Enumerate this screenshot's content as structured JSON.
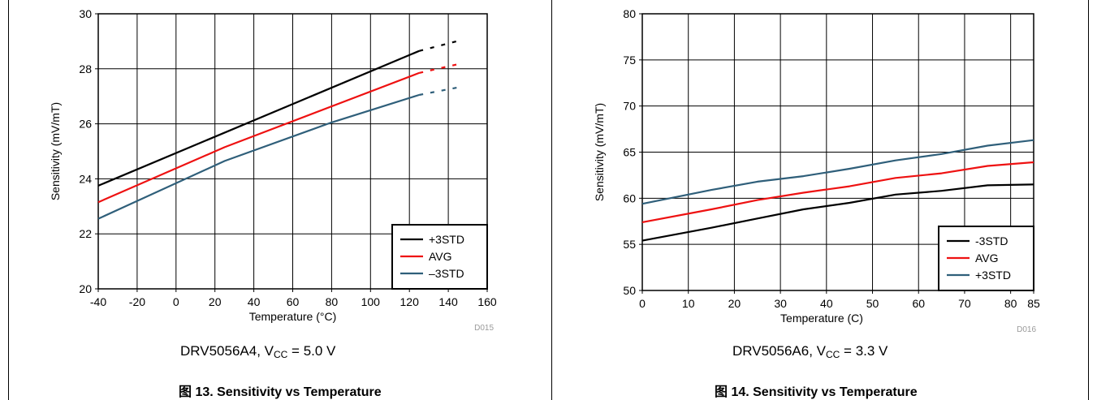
{
  "chart_data": [
    {
      "type": "line",
      "xlabel": "Temperature (°C)",
      "ylabel": "Sensitivity (mV/mT)",
      "xlim": [
        -40,
        160
      ],
      "ylim": [
        20,
        30
      ],
      "xticks": [
        -40,
        -20,
        0,
        20,
        40,
        60,
        80,
        100,
        120,
        140,
        160
      ],
      "yticks": [
        20,
        22,
        24,
        26,
        28,
        30
      ],
      "grid": true,
      "legend_position": "bottom-right",
      "code": "D015",
      "device": "DRV5056A4, V",
      "vcc_sub": "CC",
      "vcc_value": " = 5.0 V",
      "caption": "图 13. Sensitivity vs Temperature",
      "series": [
        {
          "name": "+3STD",
          "color": "#000000",
          "solid": [
            [
              -40,
              23.75
            ],
            [
              125,
              28.65
            ]
          ],
          "dashed": [
            [
              125,
              28.65
            ],
            [
              147,
              29.05
            ]
          ]
        },
        {
          "name": "AVG",
          "color": "#ee1111",
          "solid": [
            [
              -40,
              23.15
            ],
            [
              25,
              25.15
            ],
            [
              125,
              27.85
            ]
          ],
          "dashed": [
            [
              125,
              27.85
            ],
            [
              147,
              28.2
            ]
          ]
        },
        {
          "name": "–3STD",
          "color": "#2f5f7a",
          "solid": [
            [
              -40,
              22.55
            ],
            [
              25,
              24.65
            ],
            [
              80,
              26.05
            ],
            [
              125,
              27.05
            ]
          ],
          "dashed": [
            [
              125,
              27.05
            ],
            [
              147,
              27.35
            ]
          ]
        }
      ]
    },
    {
      "type": "line",
      "xlabel": "Temperature (C)",
      "ylabel": "Sensitivity (mV/mT)",
      "xlim": [
        0,
        85
      ],
      "ylim": [
        50,
        80
      ],
      "xticks": [
        0,
        10,
        20,
        30,
        40,
        50,
        60,
        70,
        80,
        85
      ],
      "yticks": [
        50,
        55,
        60,
        65,
        70,
        75,
        80
      ],
      "grid": true,
      "legend_position": "bottom-right",
      "code": "D016",
      "device": "DRV5056A6, V",
      "vcc_sub": "CC",
      "vcc_value": " = 3.3 V",
      "caption": "图 14. Sensitivity vs Temperature",
      "series": [
        {
          "name": "-3STD",
          "color": "#000000",
          "solid": [
            [
              0,
              55.4
            ],
            [
              15,
              56.8
            ],
            [
              25,
              57.8
            ],
            [
              35,
              58.8
            ],
            [
              45,
              59.5
            ],
            [
              55,
              60.4
            ],
            [
              65,
              60.8
            ],
            [
              75,
              61.4
            ],
            [
              85,
              61.5
            ]
          ],
          "dashed": []
        },
        {
          "name": "AVG",
          "color": "#ee1111",
          "solid": [
            [
              0,
              57.4
            ],
            [
              15,
              58.8
            ],
            [
              25,
              59.8
            ],
            [
              35,
              60.6
            ],
            [
              45,
              61.3
            ],
            [
              55,
              62.2
            ],
            [
              65,
              62.7
            ],
            [
              75,
              63.5
            ],
            [
              85,
              63.9
            ]
          ],
          "dashed": []
        },
        {
          "name": "+3STD",
          "color": "#2f5f7a",
          "solid": [
            [
              0,
              59.4
            ],
            [
              15,
              60.9
            ],
            [
              25,
              61.8
            ],
            [
              35,
              62.4
            ],
            [
              45,
              63.2
            ],
            [
              55,
              64.1
            ],
            [
              65,
              64.8
            ],
            [
              75,
              65.7
            ],
            [
              85,
              66.3
            ]
          ],
          "dashed": []
        }
      ]
    }
  ]
}
